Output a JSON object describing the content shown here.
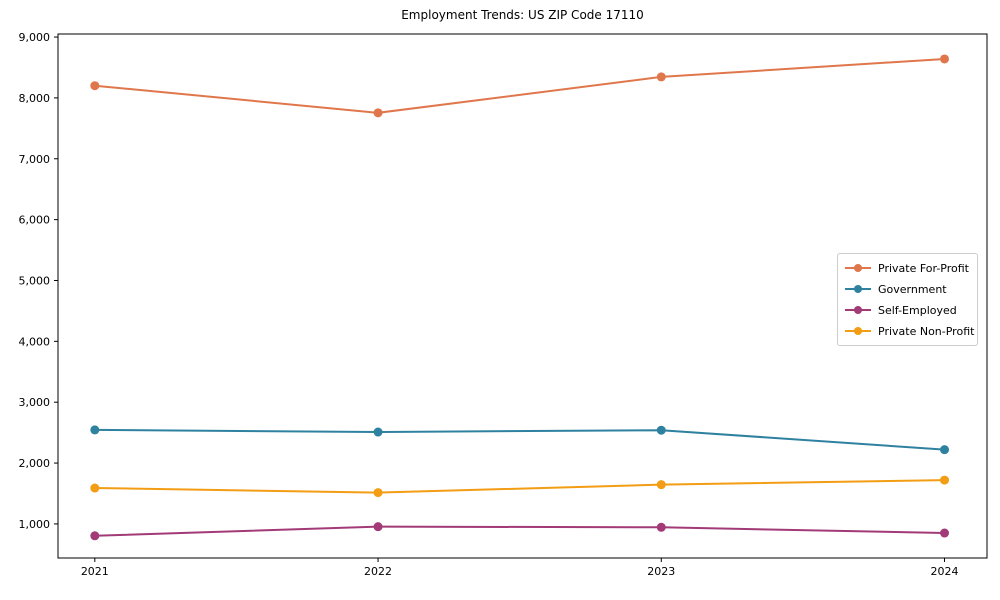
{
  "chart_data": {
    "type": "line",
    "title": "Employment Trends: US ZIP Code 17110",
    "xlabel": "",
    "ylabel": "",
    "x": [
      2021,
      2022,
      2023,
      2024
    ],
    "x_tick_labels": [
      "2021",
      "2022",
      "2023",
      "2024"
    ],
    "y_ticks": [
      1000,
      2000,
      3000,
      4000,
      5000,
      6000,
      7000,
      8000,
      9000
    ],
    "y_tick_labels": [
      "1,000",
      "2,000",
      "3,000",
      "4,000",
      "5,000",
      "6,000",
      "7,000",
      "8,000",
      "9,000"
    ],
    "xlim": [
      2020.87,
      2024.15
    ],
    "ylim": [
      440,
      9050
    ],
    "grid": false,
    "legend_position": "center right",
    "series": [
      {
        "name": "Private For-Profit",
        "color": "#e0764b",
        "values": [
          8200,
          7755,
          8345,
          8640
        ]
      },
      {
        "name": "Government",
        "color": "#2f81a0",
        "values": [
          2545,
          2510,
          2540,
          2220
        ]
      },
      {
        "name": "Self-Employed",
        "color": "#a23a78",
        "values": [
          805,
          955,
          945,
          850
        ]
      },
      {
        "name": "Private Non-Profit",
        "color": "#f29d13",
        "values": [
          1590,
          1515,
          1645,
          1720
        ]
      }
    ],
    "axis_color": "#000000",
    "tick_font_px": 11
  }
}
